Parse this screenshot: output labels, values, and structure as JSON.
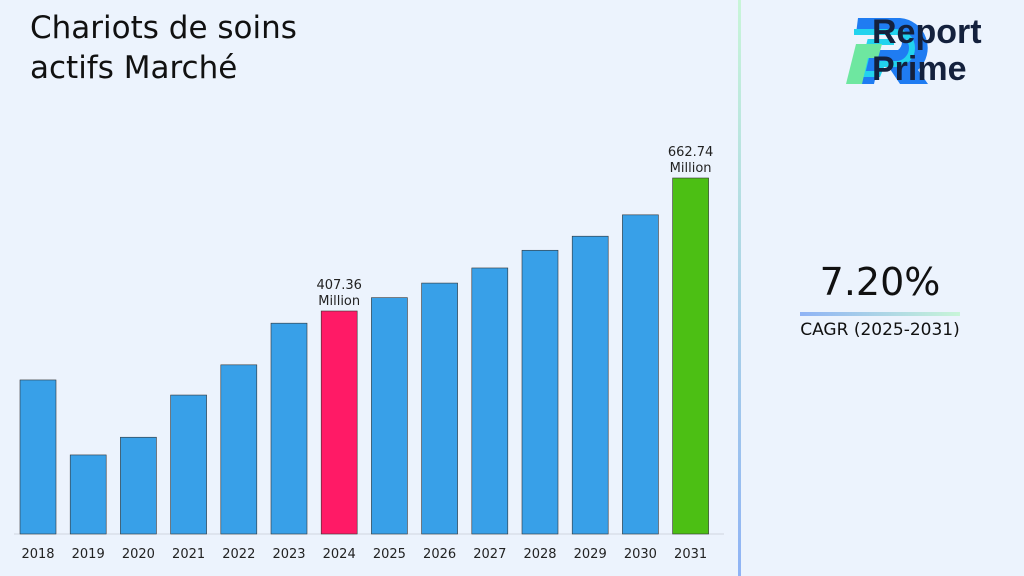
{
  "title": "Chariots de soins actifs Marché",
  "brand": {
    "name_line1": "Report",
    "name_line2": "Prime"
  },
  "cagr": {
    "value": "7.20%",
    "label": "CAGR (2025-2031)"
  },
  "colors": {
    "default_bar": "#38a0e8",
    "highlight_2024": "#ff1a66",
    "highlight_2031": "#4cbf14"
  },
  "chart_data": {
    "type": "bar",
    "categories": [
      "2018",
      "2019",
      "2020",
      "2021",
      "2022",
      "2023",
      "2024",
      "2025",
      "2026",
      "2027",
      "2028",
      "2029",
      "2030",
      "2031"
    ],
    "values": [
      275,
      131,
      165,
      246,
      304,
      384,
      407.36,
      433,
      461,
      490,
      524,
      551,
      592,
      662.74
    ],
    "data_labels": [
      {
        "category": "2024",
        "value": "407.36",
        "unit": "Million"
      },
      {
        "category": "2031",
        "value": "662.74",
        "unit": "Million"
      }
    ],
    "grid": false,
    "legend": "none"
  }
}
